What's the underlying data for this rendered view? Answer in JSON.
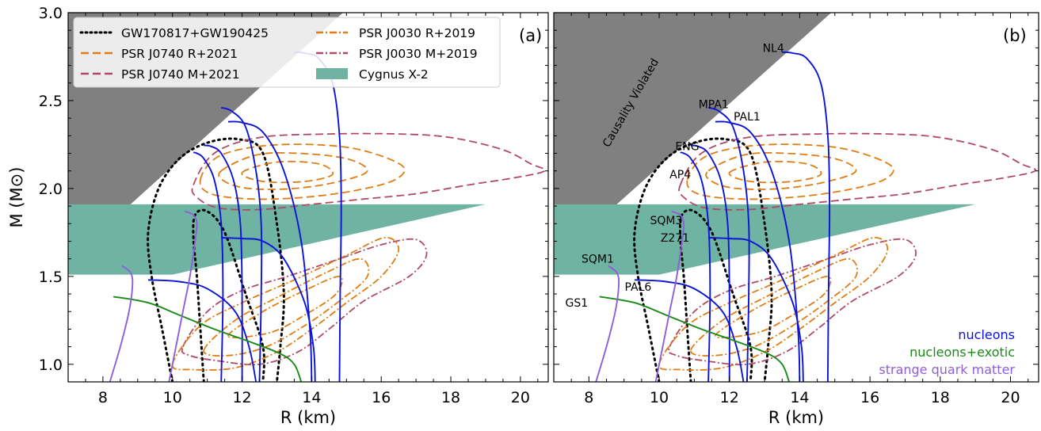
{
  "chart_data": {
    "type": "line",
    "xlabel": "R (km)",
    "ylabel": "M (M⊙)",
    "xlim": [
      7,
      20.8
    ],
    "ylim": [
      0.9,
      3.0
    ],
    "xticks": [
      "8",
      "10",
      "12",
      "14",
      "16",
      "18",
      "20"
    ],
    "yticks": [
      "1.0",
      "1.5",
      "2.0",
      "2.5",
      "3.0"
    ],
    "colors": {
      "nucleons": "#0a14d8",
      "exotic": "#1a8a1a",
      "sqm": "#8e5fd8",
      "gw": "#000000",
      "riley": "#e07c12",
      "miller": "#b04a64",
      "cygnus": "#6fb3a3",
      "causality": "#808080"
    },
    "panels": [
      {
        "label": "(a)",
        "legend": [
          {
            "label": "GW170817+GW190425",
            "style": "dotted",
            "color": "#000000"
          },
          {
            "label": "PSR J0740 R+2021",
            "style": "dashed",
            "color": "#e07c12"
          },
          {
            "label": "PSR J0740 M+2021",
            "style": "dashed",
            "color": "#b04a64"
          },
          {
            "label": "PSR J0030 R+2019",
            "style": "dashdot",
            "color": "#e07c12"
          },
          {
            "label": "PSR J0030 M+2019",
            "style": "dashdot",
            "color": "#b04a64"
          },
          {
            "label": "Cygnus X-2",
            "style": "patch",
            "color": "#6fb3a3"
          }
        ]
      },
      {
        "label": "(b)",
        "causality_label": "Causality Violated",
        "eos_labels": [
          {
            "text": "NL4",
            "x": 13.25,
            "y": 2.8
          },
          {
            "text": "MPA1",
            "x": 11.55,
            "y": 2.48
          },
          {
            "text": "PAL1",
            "x": 12.5,
            "y": 2.41
          },
          {
            "text": "ENG",
            "x": 10.8,
            "y": 2.24
          },
          {
            "text": "AP4",
            "x": 10.6,
            "y": 2.08
          },
          {
            "text": "SQM3",
            "x": 10.2,
            "y": 1.82
          },
          {
            "text": "Z271",
            "x": 10.45,
            "y": 1.72
          },
          {
            "text": "SQM1",
            "x": 8.25,
            "y": 1.6
          },
          {
            "text": "PAL6",
            "x": 9.4,
            "y": 1.44
          },
          {
            "text": "GS1",
            "x": 7.65,
            "y": 1.35
          }
        ],
        "categories": [
          {
            "text": "nucleons",
            "color": "#0a14d8"
          },
          {
            "text": "nucleons+exotic",
            "color": "#1a8a1a"
          },
          {
            "text": "strange quark matter",
            "color": "#8e5fd8"
          }
        ]
      }
    ],
    "cygnus_region": [
      [
        7.0,
        1.51
      ],
      [
        10.0,
        1.51
      ],
      [
        19.0,
        1.91
      ],
      [
        7.0,
        1.91
      ]
    ],
    "causality_region": [
      [
        7.0,
        1.59
      ],
      [
        14.9,
        3.0
      ],
      [
        7.0,
        3.0
      ]
    ],
    "eos_curves": [
      {
        "name": "NL4",
        "group": "nucleons",
        "points": [
          [
            14.8,
            0.9
          ],
          [
            14.82,
            1.4
          ],
          [
            14.85,
            1.9
          ],
          [
            14.8,
            2.3
          ],
          [
            14.6,
            2.6
          ],
          [
            14.2,
            2.74
          ],
          [
            13.8,
            2.77
          ],
          [
            13.5,
            2.775
          ]
        ]
      },
      {
        "name": "MPA1",
        "group": "nucleons",
        "points": [
          [
            12.5,
            0.9
          ],
          [
            12.55,
            1.4
          ],
          [
            12.55,
            1.8
          ],
          [
            12.4,
            2.1
          ],
          [
            12.1,
            2.35
          ],
          [
            11.7,
            2.44
          ],
          [
            11.4,
            2.46
          ]
        ]
      },
      {
        "name": "PAL1",
        "group": "nucleons",
        "points": [
          [
            14.0,
            0.9
          ],
          [
            13.95,
            1.2
          ],
          [
            13.7,
            1.7
          ],
          [
            13.2,
            2.1
          ],
          [
            12.6,
            2.32
          ],
          [
            12.0,
            2.375
          ],
          [
            11.6,
            2.38
          ]
        ]
      },
      {
        "name": "ENG",
        "group": "nucleons",
        "points": [
          [
            12.0,
            0.9
          ],
          [
            12.0,
            1.4
          ],
          [
            11.95,
            1.8
          ],
          [
            11.75,
            2.05
          ],
          [
            11.4,
            2.2
          ],
          [
            11.1,
            2.24
          ],
          [
            10.9,
            2.245
          ]
        ]
      },
      {
        "name": "AP4",
        "group": "nucleons",
        "points": [
          [
            11.4,
            0.9
          ],
          [
            11.45,
            1.4
          ],
          [
            11.4,
            1.8
          ],
          [
            11.2,
            2.05
          ],
          [
            10.9,
            2.17
          ],
          [
            10.7,
            2.2
          ],
          [
            10.6,
            2.205
          ]
        ]
      },
      {
        "name": "Z271",
        "group": "nucleons",
        "points": [
          [
            14.1,
            0.9
          ],
          [
            14.05,
            1.1
          ],
          [
            13.8,
            1.35
          ],
          [
            13.2,
            1.6
          ],
          [
            12.6,
            1.7
          ],
          [
            12.0,
            1.715
          ],
          [
            11.4,
            1.72
          ]
        ]
      },
      {
        "name": "PAL6",
        "group": "nucleons",
        "points": [
          [
            12.4,
            0.9
          ],
          [
            12.2,
            1.1
          ],
          [
            11.8,
            1.3
          ],
          [
            11.0,
            1.43
          ],
          [
            10.2,
            1.47
          ],
          [
            9.3,
            1.48
          ]
        ]
      },
      {
        "name": "GS1",
        "group": "exotic",
        "points": [
          [
            13.7,
            0.9
          ],
          [
            13.5,
            1.0
          ],
          [
            13.1,
            1.06
          ],
          [
            12.2,
            1.13
          ],
          [
            11.2,
            1.2
          ],
          [
            10.2,
            1.28
          ],
          [
            9.3,
            1.35
          ],
          [
            8.3,
            1.385
          ]
        ]
      },
      {
        "name": "SQM1",
        "group": "sqm",
        "points": [
          [
            8.2,
            0.9
          ],
          [
            8.5,
            1.1
          ],
          [
            8.75,
            1.3
          ],
          [
            8.85,
            1.45
          ],
          [
            8.8,
            1.52
          ],
          [
            8.55,
            1.56
          ]
        ]
      },
      {
        "name": "SQM3",
        "group": "sqm",
        "points": [
          [
            9.9,
            0.9
          ],
          [
            10.1,
            1.1
          ],
          [
            10.3,
            1.3
          ],
          [
            10.5,
            1.5
          ],
          [
            10.65,
            1.7
          ],
          [
            10.7,
            1.8
          ],
          [
            10.6,
            1.85
          ],
          [
            10.35,
            1.87
          ]
        ]
      }
    ],
    "credible_contours": [
      {
        "group": "gw",
        "style": "dotted",
        "closed": false,
        "points": [
          [
            10.9,
            0.9
          ],
          [
            10.8,
            1.2
          ],
          [
            10.7,
            1.5
          ],
          [
            10.6,
            1.72
          ],
          [
            10.65,
            1.85
          ],
          [
            11.0,
            1.87
          ],
          [
            11.5,
            1.75
          ],
          [
            12.1,
            1.4
          ],
          [
            12.6,
            1.1
          ],
          [
            12.6,
            0.9
          ]
        ]
      },
      {
        "group": "gw",
        "style": "dotted",
        "closed": false,
        "points": [
          [
            10.0,
            0.9
          ],
          [
            9.7,
            1.2
          ],
          [
            9.4,
            1.5
          ],
          [
            9.3,
            1.75
          ],
          [
            9.6,
            2.0
          ],
          [
            10.2,
            2.17
          ],
          [
            11.0,
            2.26
          ],
          [
            11.9,
            2.28
          ],
          [
            12.6,
            2.2
          ],
          [
            13.0,
            1.8
          ],
          [
            13.2,
            1.4
          ],
          [
            13.1,
            1.1
          ],
          [
            13.0,
            0.9
          ]
        ]
      },
      {
        "group": "miller",
        "style": "dashed",
        "closed": true,
        "points": [
          [
            10.6,
            2.02
          ],
          [
            11.2,
            2.2
          ],
          [
            12.5,
            2.29
          ],
          [
            14.5,
            2.31
          ],
          [
            16.5,
            2.31
          ],
          [
            18.0,
            2.29
          ],
          [
            19.5,
            2.22
          ],
          [
            20.3,
            2.14
          ],
          [
            20.7,
            2.1
          ],
          [
            19.8,
            2.06
          ],
          [
            18.5,
            2.02
          ],
          [
            17.0,
            1.97
          ],
          [
            15.5,
            1.94
          ],
          [
            14.0,
            1.91
          ],
          [
            12.5,
            1.88
          ],
          [
            11.3,
            1.89
          ],
          [
            10.7,
            1.95
          ]
        ]
      },
      {
        "group": "riley",
        "style": "dashed",
        "closed": true,
        "points": [
          [
            10.8,
            2.05
          ],
          [
            11.3,
            2.18
          ],
          [
            12.5,
            2.24
          ],
          [
            14.0,
            2.25
          ],
          [
            15.4,
            2.22
          ],
          [
            16.6,
            2.13
          ],
          [
            16.4,
            2.05
          ],
          [
            15.3,
            1.99
          ],
          [
            13.8,
            1.95
          ],
          [
            12.3,
            1.94
          ],
          [
            11.1,
            1.97
          ]
        ]
      },
      {
        "group": "riley",
        "style": "dashed",
        "closed": true,
        "points": [
          [
            11.4,
            2.1
          ],
          [
            12.4,
            2.19
          ],
          [
            13.6,
            2.2
          ],
          [
            15.0,
            2.17
          ],
          [
            15.6,
            2.1
          ],
          [
            14.8,
            2.04
          ],
          [
            13.5,
            2.0
          ],
          [
            12.2,
            2.0
          ],
          [
            11.5,
            2.04
          ]
        ]
      },
      {
        "group": "riley",
        "style": "dashed",
        "closed": true,
        "points": [
          [
            12.0,
            2.09
          ],
          [
            13.0,
            2.15
          ],
          [
            14.2,
            2.14
          ],
          [
            14.6,
            2.08
          ],
          [
            13.8,
            2.04
          ],
          [
            12.6,
            2.04
          ]
        ]
      },
      {
        "group": "miller",
        "style": "dashdot",
        "closed": true,
        "points": [
          [
            10.3,
            1.1
          ],
          [
            11.0,
            1.3
          ],
          [
            12.0,
            1.42
          ],
          [
            13.3,
            1.5
          ],
          [
            14.8,
            1.6
          ],
          [
            16.0,
            1.68
          ],
          [
            17.0,
            1.71
          ],
          [
            17.3,
            1.62
          ],
          [
            16.8,
            1.5
          ],
          [
            15.5,
            1.36
          ],
          [
            14.5,
            1.2
          ],
          [
            13.6,
            1.07
          ],
          [
            12.5,
            1.0
          ],
          [
            11.3,
            1.02
          ],
          [
            10.5,
            1.05
          ]
        ]
      },
      {
        "group": "riley",
        "style": "dashdot",
        "closed": true,
        "points": [
          [
            10.0,
            1.0
          ],
          [
            10.8,
            1.22
          ],
          [
            12.0,
            1.35
          ],
          [
            13.5,
            1.48
          ],
          [
            15.0,
            1.62
          ],
          [
            16.1,
            1.72
          ],
          [
            16.5,
            1.65
          ],
          [
            16.0,
            1.5
          ],
          [
            15.0,
            1.35
          ],
          [
            14.0,
            1.2
          ],
          [
            13.0,
            1.07
          ],
          [
            11.8,
            0.98
          ],
          [
            10.6,
            0.97
          ]
        ]
      },
      {
        "group": "riley",
        "style": "dashdot",
        "closed": true,
        "points": [
          [
            10.9,
            1.08
          ],
          [
            11.8,
            1.25
          ],
          [
            13.0,
            1.38
          ],
          [
            14.4,
            1.52
          ],
          [
            15.4,
            1.6
          ],
          [
            15.6,
            1.5
          ],
          [
            14.8,
            1.36
          ],
          [
            13.8,
            1.22
          ],
          [
            12.7,
            1.1
          ],
          [
            11.6,
            1.05
          ]
        ]
      },
      {
        "group": "riley",
        "style": "dashdot",
        "closed": true,
        "points": [
          [
            11.6,
            1.16
          ],
          [
            12.6,
            1.3
          ],
          [
            13.8,
            1.42
          ],
          [
            14.8,
            1.5
          ],
          [
            14.7,
            1.4
          ],
          [
            13.8,
            1.28
          ],
          [
            12.8,
            1.18
          ]
        ]
      }
    ]
  }
}
